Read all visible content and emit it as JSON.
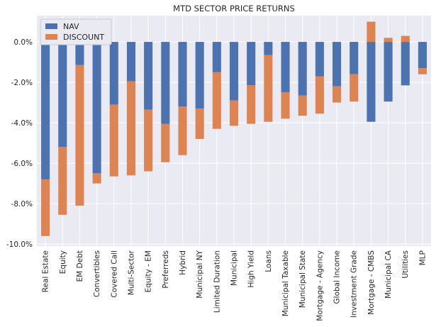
{
  "chart_data": {
    "type": "bar",
    "stacked": true,
    "title": "MTD SECTOR PRICE RETURNS",
    "xlabel": "",
    "ylabel": "",
    "ylim": [
      -10.1,
      1.3
    ],
    "yticks": [
      0,
      -2,
      -4,
      -6,
      -8,
      -10
    ],
    "ytick_labels": [
      "0.0%",
      "-2.0%",
      "-4.0%",
      "-6.0%",
      "-8.0%",
      "-10.0%"
    ],
    "grid": true,
    "legend_position": "top-left",
    "background_color": "#eaeaf2",
    "categories": [
      "Real Estate",
      "Equity",
      "EM Debt",
      "Convertibles",
      "Covered Call",
      "Multi-Sector",
      "Equity - EM",
      "Preferreds",
      "Hybrid",
      "Municipal NY",
      "Limited Duration",
      "Municipal",
      "High Yield",
      "Loans",
      "Municipal Taxable",
      "Municipal State",
      "Mortgage - Agency",
      "Global Income",
      "Investment Grade",
      "Mortgage - CMBS",
      "Municipal CA",
      "Utilities",
      "MLP"
    ],
    "series": [
      {
        "name": "NAV",
        "color": "#4c72b0",
        "values": [
          -6.8,
          -5.2,
          -1.15,
          -6.5,
          -3.1,
          -1.95,
          -3.35,
          -4.05,
          -3.2,
          -3.3,
          -1.5,
          -2.9,
          -2.15,
          -0.65,
          -2.5,
          -2.65,
          -1.7,
          -2.2,
          -1.6,
          -3.95,
          -2.95,
          -2.15,
          -1.3
        ]
      },
      {
        "name": "DISCOUNT",
        "color": "#dd8452",
        "values": [
          -2.8,
          -3.35,
          -6.95,
          -0.5,
          -3.55,
          -4.65,
          -3.05,
          -1.9,
          -2.4,
          -1.5,
          -2.8,
          -1.25,
          -1.9,
          -3.3,
          -1.3,
          -1.0,
          -1.85,
          -0.8,
          -1.35,
          1.0,
          0.2,
          0.3,
          -0.3
        ]
      }
    ]
  }
}
